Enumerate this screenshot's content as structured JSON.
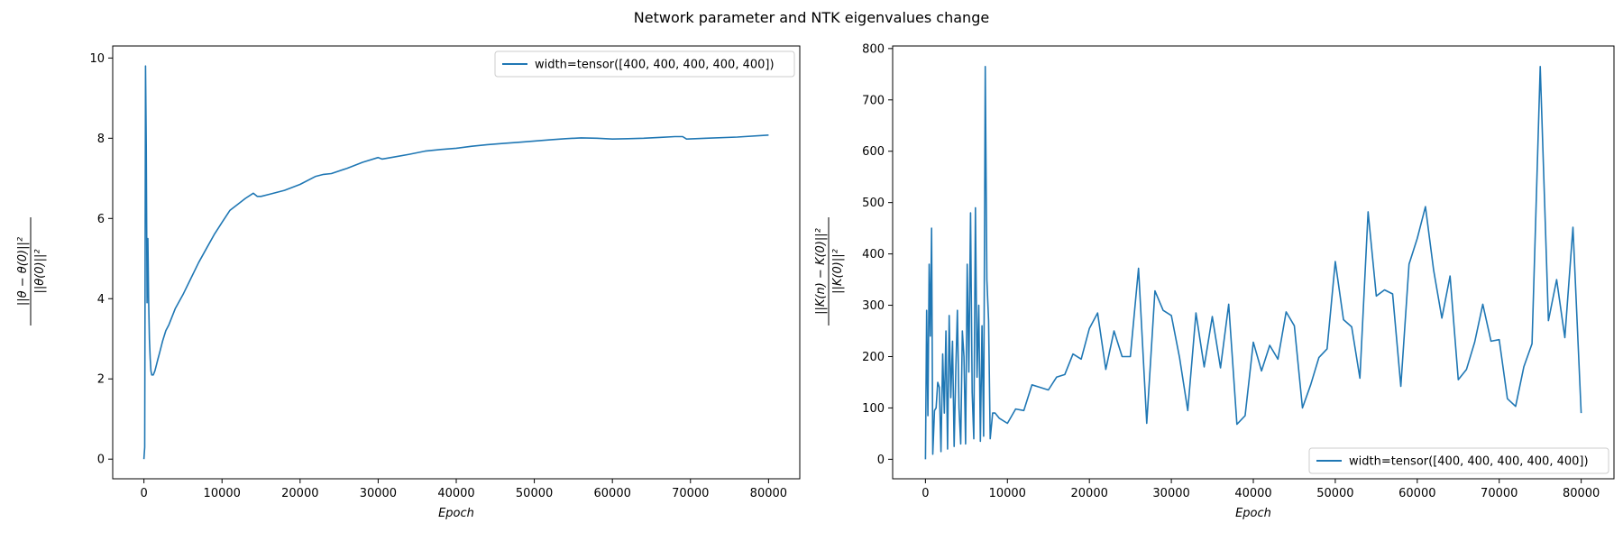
{
  "figure": {
    "title": "Network parameter and NTK eigenvalues change"
  },
  "colors": {
    "series": "#1f77b4",
    "axis": "#000000",
    "legend_border": "#cccccc"
  },
  "chart_data": [
    {
      "type": "line",
      "xlabel": "Epoch",
      "ylabel_num": "||θ − θ(0)||²",
      "ylabel_den": "||θ(0)||²",
      "xlim": [
        -4000,
        84000
      ],
      "ylim": [
        -0.49,
        10.3
      ],
      "xticks": [
        0,
        10000,
        20000,
        30000,
        40000,
        50000,
        60000,
        70000,
        80000
      ],
      "xtick_labels": [
        "0",
        "10000",
        "20000",
        "30000",
        "40000",
        "50000",
        "60000",
        "70000",
        "80000"
      ],
      "yticks": [
        0,
        2,
        4,
        6,
        8,
        10
      ],
      "ytick_labels": [
        "0",
        "2",
        "4",
        "6",
        "8",
        "10"
      ],
      "grid": false,
      "legend": "upper right",
      "series": [
        {
          "name": "width=tensor([400, 400, 400, 400, 400])",
          "x": [
            0,
            100,
            200,
            300,
            400,
            500,
            600,
            700,
            800,
            900,
            1000,
            1200,
            1400,
            1600,
            1800,
            2000,
            2400,
            2800,
            3200,
            3600,
            4000,
            5000,
            6000,
            7000,
            8000,
            9000,
            10000,
            11000,
            12000,
            13000,
            14000,
            14500,
            15000,
            16000,
            18000,
            20000,
            22000,
            23000,
            24000,
            26000,
            28000,
            30000,
            30500,
            32000,
            34000,
            36000,
            38000,
            40000,
            42000,
            44000,
            46000,
            48000,
            50000,
            52000,
            54000,
            56000,
            58000,
            60000,
            62000,
            64000,
            66000,
            68000,
            69000,
            69500,
            72000,
            76000,
            80000
          ],
          "y": [
            0.0,
            0.3,
            9.8,
            7.8,
            3.9,
            5.5,
            4.0,
            3.0,
            2.5,
            2.2,
            2.1,
            2.1,
            2.2,
            2.35,
            2.5,
            2.65,
            2.95,
            3.2,
            3.35,
            3.55,
            3.75,
            4.1,
            4.5,
            4.9,
            5.25,
            5.6,
            5.9,
            6.2,
            6.35,
            6.5,
            6.63,
            6.55,
            6.55,
            6.6,
            6.7,
            6.85,
            7.05,
            7.1,
            7.12,
            7.25,
            7.4,
            7.52,
            7.48,
            7.53,
            7.6,
            7.68,
            7.72,
            7.75,
            7.8,
            7.84,
            7.87,
            7.9,
            7.93,
            7.96,
            7.99,
            8.01,
            8.0,
            7.98,
            7.99,
            8.0,
            8.02,
            8.04,
            8.04,
            7.98,
            8.0,
            8.03,
            8.08
          ]
        }
      ]
    },
    {
      "type": "line",
      "xlabel": "Epoch",
      "ylabel_num": "||K(n) − K(0)||²",
      "ylabel_den": "||K(0)||²",
      "xlim": [
        -4000,
        84000
      ],
      "ylim": [
        -38,
        805
      ],
      "xticks": [
        0,
        10000,
        20000,
        30000,
        40000,
        50000,
        60000,
        70000,
        80000
      ],
      "xtick_labels": [
        "0",
        "10000",
        "20000",
        "30000",
        "40000",
        "50000",
        "60000",
        "70000",
        "80000"
      ],
      "yticks": [
        0,
        100,
        200,
        300,
        400,
        500,
        600,
        700,
        800
      ],
      "ytick_labels": [
        "0",
        "100",
        "200",
        "300",
        "400",
        "500",
        "600",
        "700",
        "800"
      ],
      "grid": false,
      "legend": "lower right",
      "series": [
        {
          "name": "width=tensor([400, 400, 400, 400, 400])",
          "x": [
            0,
            150,
            300,
            450,
            600,
            750,
            900,
            1100,
            1300,
            1500,
            1700,
            1900,
            2100,
            2300,
            2500,
            2700,
            2900,
            3100,
            3300,
            3500,
            3700,
            3900,
            4100,
            4300,
            4500,
            4700,
            4900,
            5100,
            5300,
            5500,
            5700,
            5900,
            6100,
            6300,
            6500,
            6700,
            6900,
            7100,
            7300,
            7500,
            7700,
            7900,
            8200,
            8500,
            9000,
            9000,
            10000,
            10000,
            11000,
            11000,
            12000,
            12000,
            13000,
            13000,
            14000,
            14000,
            15000,
            15000,
            16000,
            16000,
            17000,
            17000,
            18000,
            18000,
            19000,
            19000,
            20000,
            20000,
            21000,
            21000,
            22000,
            22000,
            23000,
            23000,
            24000,
            24000,
            25000,
            25000,
            26000,
            26000,
            27000,
            27000,
            28000,
            28000,
            29000,
            29000,
            30000,
            30000,
            31000,
            31000,
            32000,
            32000,
            33000,
            33000,
            34000,
            34000,
            35000,
            35000,
            36000,
            36000,
            37000,
            37000,
            38000,
            38000,
            39000,
            39000,
            40000,
            40000,
            41000,
            41000,
            42000,
            42000,
            43000,
            43000,
            44000,
            44000,
            45000,
            45000,
            46000,
            46000,
            47000,
            47000,
            48000,
            48000,
            49000,
            49000,
            50000,
            50000,
            51000,
            51000,
            52000,
            52000,
            53000,
            53000,
            54000,
            54000,
            55000,
            55000,
            56000,
            56000,
            57000,
            57000,
            58000,
            58000,
            59000,
            59000,
            60000,
            60000,
            61000,
            61000,
            62000,
            62000,
            63000,
            63000,
            64000,
            64000,
            65000,
            65000,
            66000,
            66000,
            67000,
            67000,
            68000,
            68000,
            69000,
            69000,
            70000,
            70000,
            71000,
            71000,
            72000,
            72000,
            73000,
            73000,
            74000,
            74000,
            75000,
            75000,
            76000,
            76000,
            77000,
            77000,
            78000,
            78000,
            79000,
            79000,
            80000
          ],
          "y": [
            0,
            290,
            85,
            380,
            240,
            450,
            10,
            95,
            100,
            150,
            140,
            15,
            205,
            90,
            250,
            20,
            280,
            120,
            230,
            25,
            170,
            290,
            100,
            30,
            250,
            200,
            30,
            380,
            170,
            480,
            130,
            40,
            490,
            160,
            300,
            35,
            260,
            45,
            765,
            350,
            270,
            40,
            90,
            90,
            80,
            80,
            70,
            70,
            98,
            98,
            95,
            95,
            145,
            145,
            140,
            140,
            135,
            135,
            160,
            160,
            165,
            165,
            205,
            205,
            195,
            195,
            255,
            255,
            285,
            285,
            175,
            175,
            250,
            250,
            200,
            200,
            200,
            200,
            372,
            372,
            70,
            70,
            328,
            328,
            290,
            290,
            280,
            280,
            198,
            198,
            95,
            95,
            285,
            285,
            180,
            180,
            278,
            278,
            178,
            178,
            302,
            302,
            68,
            68,
            85,
            85,
            228,
            228,
            172,
            172,
            222,
            222,
            195,
            195,
            287,
            287,
            260,
            260,
            100,
            100,
            145,
            145,
            198,
            198,
            215,
            215,
            385,
            385,
            272,
            272,
            258,
            258,
            158,
            158,
            482,
            482,
            318,
            318,
            330,
            330,
            322,
            322,
            142,
            142,
            380,
            380,
            430,
            430,
            492,
            492,
            368,
            368,
            275,
            275,
            357,
            357,
            155,
            155,
            175,
            175,
            228,
            228,
            302,
            302,
            230,
            230,
            233,
            233,
            118,
            118,
            103,
            103,
            180,
            180,
            225,
            225,
            765,
            765,
            270,
            270,
            350,
            350,
            237,
            237,
            452,
            452,
            90
          ]
        }
      ]
    }
  ]
}
